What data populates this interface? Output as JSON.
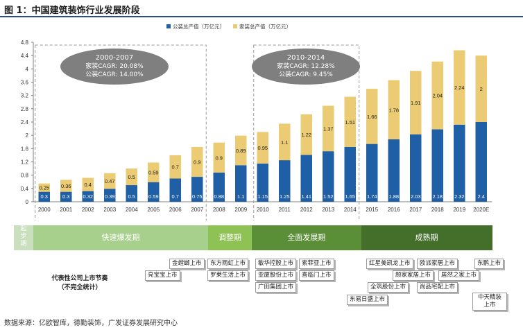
{
  "figure": {
    "title": "图 1：中国建筑装饰行业发展阶段",
    "source": "数据来源：亿欧智库，德勤装饰，广发证券发展研究中心"
  },
  "chart_data": {
    "type": "bar",
    "stacked": true,
    "categories": [
      "2000",
      "2001",
      "2002",
      "2003",
      "2004",
      "2005",
      "2006",
      "2007",
      "2008",
      "2009",
      "2010",
      "2011",
      "2012",
      "2013",
      "2014",
      "2015",
      "2016",
      "2017",
      "2018",
      "2019",
      "2020E"
    ],
    "series": [
      {
        "name": "公装总产值（万亿元）",
        "color": "#1f5fa6",
        "values": [
          0.3,
          0.3,
          0.32,
          0.39,
          0.5,
          0.59,
          0.7,
          0.75,
          0.88,
          1.1,
          1.15,
          1.25,
          1.41,
          1.52,
          1.65,
          1.74,
          1.88,
          2.03,
          2.18,
          2.32,
          2.4
        ],
        "labels": [
          "0.3",
          "0.3",
          "0.32",
          "0.39",
          "0.5",
          "0.59",
          "0.7",
          "0.75",
          "0.88",
          "1.1",
          "1.15",
          "1.25",
          "1.41",
          "1.52",
          "1.65",
          "1.74",
          "1.88",
          "2.03",
          "2.18",
          "2.32",
          "2.4"
        ]
      },
      {
        "name": "家装总产值（万亿元）",
        "color": "#ebcb73",
        "values": [
          0.25,
          0.36,
          0.4,
          0.47,
          0.5,
          0.59,
          0.7,
          0.9,
          0.9,
          0.89,
          0.95,
          1.1,
          1.22,
          1.37,
          1.51,
          1.66,
          1.78,
          1.91,
          2.04,
          2.24,
          2.0
        ],
        "labels": [
          "0.25",
          "0.36",
          "0.4",
          "0.47",
          "0.5",
          "0.59",
          "0.7",
          "0.9",
          "0.9",
          "0.89",
          "0.95",
          "1.1",
          "1.22",
          "1.37",
          "1.51",
          "1.66",
          "1.78",
          "1.91",
          "2.04",
          "2.24",
          "2"
        ]
      }
    ],
    "ylim": [
      0,
      4.8
    ],
    "yticks": [
      "0",
      "0.4",
      "0.8",
      "1.2",
      "1.6",
      "2",
      "2.4",
      "2.8",
      "3.2",
      "3.6",
      "4",
      "4.4",
      "4.8"
    ],
    "legend_position": "top",
    "grid": false,
    "annotations": [
      {
        "lines": [
          "2000-2007",
          "家装CAGR: 20.08%",
          "公装CAGR: 14.00%"
        ],
        "range": [
          "2000",
          "2007"
        ]
      },
      {
        "lines": [
          "2010-2014",
          "家装CAGR: 12.28%",
          "公装CAGR: 9.45%"
        ],
        "range": [
          "2010",
          "2014"
        ]
      }
    ]
  },
  "stages": {
    "start_label": [
      "起",
      "步",
      "期"
    ],
    "items": [
      {
        "label": "快速爆发期",
        "from": "2000",
        "to": "2007",
        "color": "#a8d08d"
      },
      {
        "label": "调整期",
        "from": "2008",
        "to": "2009",
        "color": "#8fc255"
      },
      {
        "label": "全面发展期",
        "from": "2010",
        "to": "2014",
        "color": "#5a8f37"
      },
      {
        "label": "成熟期",
        "from": "2015",
        "to": "2020E",
        "color": "#436f2a"
      }
    ]
  },
  "ipo": {
    "title_line1": "代表性公司上市节奏",
    "title_line2": "（不完全统计）",
    "tags": [
      "金螳螂上市",
      "东方雨虹上市",
      "敏华控股上市",
      "索菲亚上市",
      "红星美凯龙上市",
      "欧派家居上市",
      "东鹏上市",
      "亮宝宝上市",
      "罗莱生活上市",
      "亚厦股份上市",
      "喜临门上市",
      "顾家家居上市",
      "居然之家上市",
      "广田集团上市",
      "全筑股份上市",
      "尚品宅配上市",
      "东易日盛上市",
      "中天精装上市"
    ]
  }
}
